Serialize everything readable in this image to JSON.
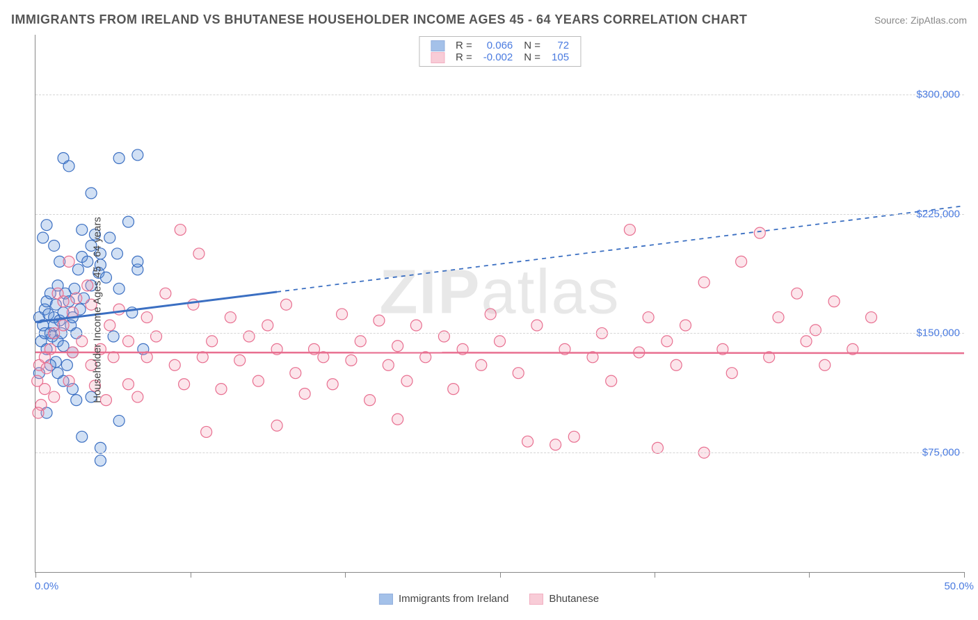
{
  "header": {
    "title": "IMMIGRANTS FROM IRELAND VS BHUTANESE HOUSEHOLDER INCOME AGES 45 - 64 YEARS CORRELATION CHART",
    "source_prefix": "Source: ",
    "source_name": "ZipAtlas.com"
  },
  "watermark": {
    "part1": "ZIP",
    "part2": "atlas"
  },
  "chart": {
    "type": "scatter",
    "ylabel": "Householder Income Ages 45 - 64 years",
    "xlim": [
      0,
      50
    ],
    "ylim": [
      0,
      337500
    ],
    "x_axis": {
      "min_label": "0.0%",
      "max_label": "50.0%",
      "tick_positions_pct": [
        0,
        16.7,
        33.3,
        50,
        66.7,
        83.3,
        100
      ]
    },
    "y_gridlines": [
      {
        "value": 75000,
        "label": "$75,000"
      },
      {
        "value": 150000,
        "label": "$150,000"
      },
      {
        "value": 225000,
        "label": "$225,000"
      },
      {
        "value": 300000,
        "label": "$300,000"
      }
    ],
    "background_color": "#ffffff",
    "grid_color": "#d5d5d5",
    "axis_color": "#888888",
    "tick_label_color": "#4a7be0",
    "marker_radius": 8,
    "marker_fill_opacity": 0.28,
    "series": [
      {
        "id": "ireland",
        "name": "Immigrants from Ireland",
        "color": "#5a8fd8",
        "stroke": "#3b6fc2",
        "R": "0.066",
        "N": "72",
        "trend": {
          "y0": 157000,
          "y50": 230000,
          "solid_until_x": 13
        },
        "points": [
          [
            0.2,
            160000
          ],
          [
            0.3,
            145000
          ],
          [
            0.4,
            155000
          ],
          [
            0.5,
            150000
          ],
          [
            0.5,
            165000
          ],
          [
            0.6,
            170000
          ],
          [
            0.6,
            140000
          ],
          [
            0.7,
            162000
          ],
          [
            0.8,
            175000
          ],
          [
            0.8,
            150000
          ],
          [
            0.9,
            148000
          ],
          [
            1.0,
            160000
          ],
          [
            1.0,
            155000
          ],
          [
            1.1,
            132000
          ],
          [
            1.1,
            168000
          ],
          [
            1.2,
            145000
          ],
          [
            1.2,
            180000
          ],
          [
            1.3,
            158000
          ],
          [
            1.4,
            150000
          ],
          [
            1.5,
            142000
          ],
          [
            1.5,
            163000
          ],
          [
            1.6,
            175000
          ],
          [
            1.7,
            130000
          ],
          [
            1.8,
            170000
          ],
          [
            1.9,
            155000
          ],
          [
            2.0,
            160000
          ],
          [
            2.0,
            138000
          ],
          [
            2.1,
            178000
          ],
          [
            2.2,
            150000
          ],
          [
            2.3,
            190000
          ],
          [
            2.4,
            165000
          ],
          [
            2.5,
            198000
          ],
          [
            2.6,
            172000
          ],
          [
            2.8,
            195000
          ],
          [
            3.0,
            180000
          ],
          [
            3.0,
            205000
          ],
          [
            3.2,
            212000
          ],
          [
            3.4,
            188000
          ],
          [
            3.5,
            200000
          ],
          [
            3.5,
            193000
          ],
          [
            3.8,
            185000
          ],
          [
            4.0,
            210000
          ],
          [
            4.2,
            148000
          ],
          [
            4.4,
            200000
          ],
          [
            4.5,
            178000
          ],
          [
            5.0,
            220000
          ],
          [
            5.2,
            163000
          ],
          [
            5.5,
            190000
          ],
          [
            5.5,
            195000
          ],
          [
            5.8,
            140000
          ],
          [
            2.5,
            85000
          ],
          [
            3.5,
            78000
          ],
          [
            3.5,
            70000
          ],
          [
            4.5,
            95000
          ],
          [
            2.0,
            115000
          ],
          [
            1.5,
            120000
          ],
          [
            2.2,
            108000
          ],
          [
            3.0,
            110000
          ],
          [
            0.8,
            130000
          ],
          [
            1.2,
            125000
          ],
          [
            1.5,
            260000
          ],
          [
            1.8,
            255000
          ],
          [
            3.0,
            238000
          ],
          [
            4.5,
            260000
          ],
          [
            5.5,
            262000
          ],
          [
            0.4,
            210000
          ],
          [
            0.6,
            218000
          ],
          [
            1.0,
            205000
          ],
          [
            1.3,
            195000
          ],
          [
            2.5,
            215000
          ],
          [
            0.2,
            125000
          ],
          [
            0.6,
            100000
          ]
        ]
      },
      {
        "id": "bhutanese",
        "name": "Bhutanese",
        "color": "#f4a3b8",
        "stroke": "#e86f90",
        "R": "-0.002",
        "N": "105",
        "trend": {
          "y0": 138000,
          "y50": 137500,
          "solid_until_x": 50
        },
        "points": [
          [
            0.2,
            130000
          ],
          [
            0.3,
            105000
          ],
          [
            0.5,
            135000
          ],
          [
            0.5,
            115000
          ],
          [
            0.6,
            128000
          ],
          [
            0.8,
            140000
          ],
          [
            1.0,
            110000
          ],
          [
            1.0,
            150000
          ],
          [
            1.2,
            175000
          ],
          [
            1.5,
            155000
          ],
          [
            1.5,
            170000
          ],
          [
            1.8,
            120000
          ],
          [
            2.0,
            163000
          ],
          [
            2.0,
            138000
          ],
          [
            2.2,
            172000
          ],
          [
            2.5,
            145000
          ],
          [
            2.8,
            180000
          ],
          [
            3.0,
            130000
          ],
          [
            3.0,
            168000
          ],
          [
            3.2,
            117000
          ],
          [
            3.5,
            140000
          ],
          [
            3.8,
            108000
          ],
          [
            4.0,
            155000
          ],
          [
            4.2,
            135000
          ],
          [
            4.5,
            165000
          ],
          [
            5.0,
            145000
          ],
          [
            5.0,
            118000
          ],
          [
            5.5,
            110000
          ],
          [
            6.0,
            160000
          ],
          [
            6.0,
            135000
          ],
          [
            6.5,
            148000
          ],
          [
            7.0,
            175000
          ],
          [
            7.5,
            130000
          ],
          [
            8.0,
            118000
          ],
          [
            8.5,
            168000
          ],
          [
            9.0,
            135000
          ],
          [
            9.5,
            145000
          ],
          [
            10.0,
            115000
          ],
          [
            10.5,
            160000
          ],
          [
            11.0,
            133000
          ],
          [
            11.5,
            148000
          ],
          [
            12.0,
            120000
          ],
          [
            12.5,
            155000
          ],
          [
            13.0,
            140000
          ],
          [
            13.5,
            168000
          ],
          [
            14.0,
            125000
          ],
          [
            14.5,
            112000
          ],
          [
            15.0,
            140000
          ],
          [
            15.5,
            135000
          ],
          [
            16.0,
            118000
          ],
          [
            16.5,
            162000
          ],
          [
            17.0,
            133000
          ],
          [
            17.5,
            145000
          ],
          [
            18.0,
            108000
          ],
          [
            18.5,
            158000
          ],
          [
            19.0,
            130000
          ],
          [
            19.5,
            142000
          ],
          [
            20.0,
            120000
          ],
          [
            20.5,
            155000
          ],
          [
            21.0,
            135000
          ],
          [
            22.0,
            148000
          ],
          [
            22.5,
            115000
          ],
          [
            23.0,
            140000
          ],
          [
            24.0,
            130000
          ],
          [
            24.5,
            162000
          ],
          [
            25.0,
            145000
          ],
          [
            26.0,
            125000
          ],
          [
            26.5,
            82000
          ],
          [
            27.0,
            155000
          ],
          [
            28.0,
            80000
          ],
          [
            28.5,
            140000
          ],
          [
            29.0,
            85000
          ],
          [
            30.0,
            135000
          ],
          [
            30.5,
            150000
          ],
          [
            31.0,
            120000
          ],
          [
            32.0,
            215000
          ],
          [
            32.5,
            138000
          ],
          [
            33.0,
            160000
          ],
          [
            34.0,
            145000
          ],
          [
            34.5,
            130000
          ],
          [
            35.0,
            155000
          ],
          [
            36.0,
            182000
          ],
          [
            37.0,
            140000
          ],
          [
            37.5,
            125000
          ],
          [
            38.0,
            195000
          ],
          [
            39.0,
            213000
          ],
          [
            39.5,
            135000
          ],
          [
            40.0,
            160000
          ],
          [
            41.0,
            175000
          ],
          [
            41.5,
            145000
          ],
          [
            42.0,
            152000
          ],
          [
            42.5,
            130000
          ],
          [
            43.0,
            170000
          ],
          [
            44.0,
            140000
          ],
          [
            45.0,
            160000
          ],
          [
            7.8,
            215000
          ],
          [
            8.8,
            200000
          ],
          [
            1.8,
            195000
          ],
          [
            9.2,
            88000
          ],
          [
            13.0,
            92000
          ],
          [
            19.5,
            96000
          ],
          [
            33.5,
            78000
          ],
          [
            36.0,
            75000
          ],
          [
            0.1,
            120000
          ],
          [
            0.15,
            100000
          ]
        ]
      }
    ]
  },
  "legend_bottom": {
    "series1_label": "Immigrants from Ireland",
    "series2_label": "Bhutanese"
  }
}
